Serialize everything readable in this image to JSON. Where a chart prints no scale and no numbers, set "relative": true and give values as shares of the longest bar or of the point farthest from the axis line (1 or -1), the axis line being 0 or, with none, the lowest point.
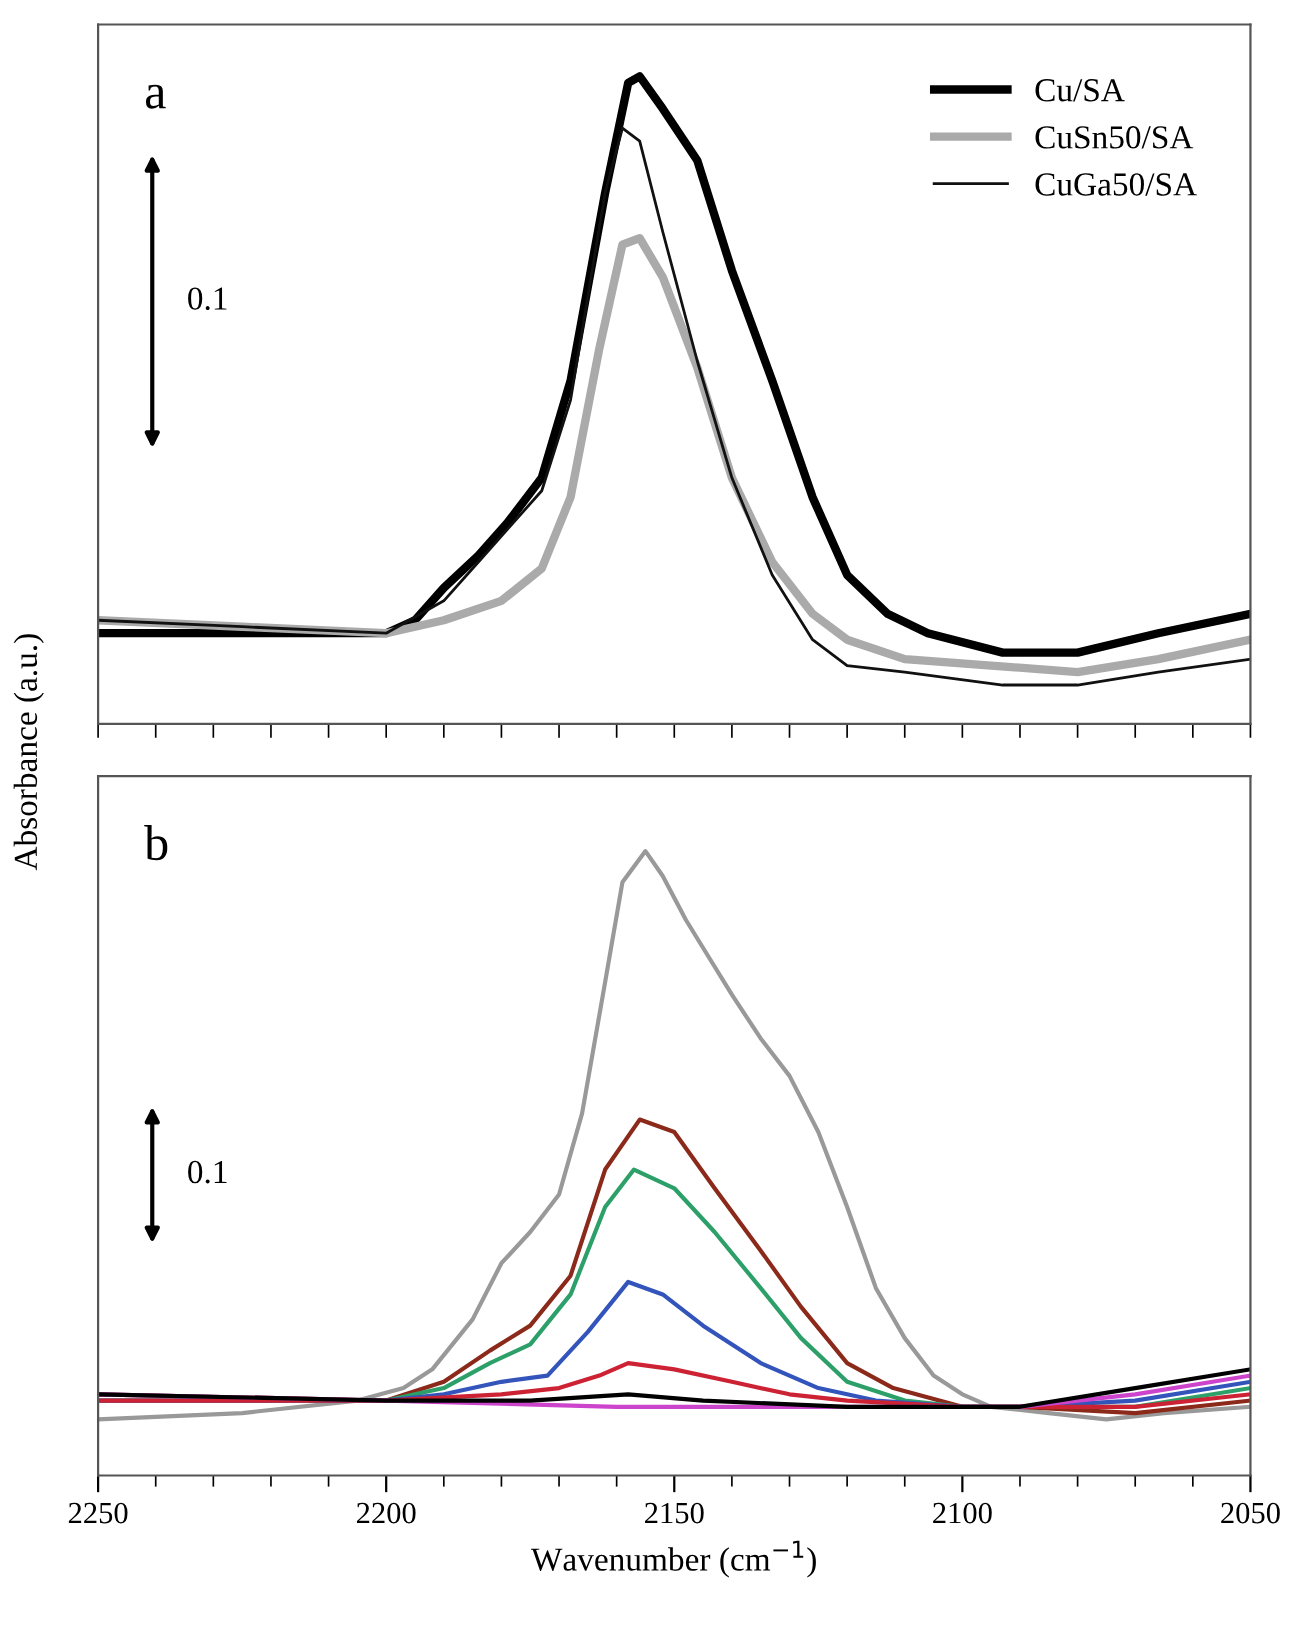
{
  "chart_data": [
    {
      "type": "line",
      "title": "a",
      "relative": true,
      "ylabel": "Absorbance (a.u.)",
      "xlim": [
        2250,
        2050
      ],
      "xticks": [
        {
          "value": 2250,
          "label": null
        },
        {
          "value": 2240,
          "label": null
        },
        {
          "value": 2230,
          "label": null
        },
        {
          "value": 2220,
          "label": null
        },
        {
          "value": 2210,
          "label": null
        },
        {
          "value": 2200,
          "label": null
        },
        {
          "value": 2190,
          "label": null
        },
        {
          "value": 2180,
          "label": null
        },
        {
          "value": 2170,
          "label": null
        },
        {
          "value": 2160,
          "label": null
        },
        {
          "value": 2150,
          "label": null
        },
        {
          "value": 2140,
          "label": null
        },
        {
          "value": 2130,
          "label": null
        },
        {
          "value": 2120,
          "label": null
        },
        {
          "value": 2110,
          "label": null
        },
        {
          "value": 2100,
          "label": null
        },
        {
          "value": 2090,
          "label": null
        },
        {
          "value": 2080,
          "label": null
        },
        {
          "value": 2070,
          "label": null
        },
        {
          "value": 2060,
          "label": null
        },
        {
          "value": 2050,
          "label": null
        }
      ],
      "tick_labels": false,
      "legend": "top right",
      "annotations": [
        "0.1"
      ],
      "series": [
        {
          "name": "Cu/SA",
          "color": "#000000",
          "x": [
            2250,
            2225,
            2200,
            2195,
            2190,
            2184,
            2179,
            2173,
            2168,
            2162,
            2158,
            2156,
            2152,
            2146,
            2140,
            2133,
            2126,
            2120,
            2113,
            2106,
            2093,
            2080,
            2066,
            2050
          ],
          "values": [
            0.14,
            0.14,
            0.14,
            0.16,
            0.21,
            0.26,
            0.31,
            0.38,
            0.53,
            0.82,
            0.99,
            1.0,
            0.95,
            0.87,
            0.7,
            0.53,
            0.35,
            0.23,
            0.17,
            0.14,
            0.11,
            0.11,
            0.14,
            0.17
          ]
        },
        {
          "name": "CuSn50/SA",
          "color": "#aaaaaa",
          "x": [
            2250,
            2225,
            2200,
            2190,
            2180,
            2173,
            2168,
            2163,
            2159,
            2156,
            2152,
            2146,
            2140,
            2133,
            2126,
            2120,
            2110,
            2095,
            2080,
            2066,
            2050
          ],
          "values": [
            0.16,
            0.15,
            0.14,
            0.16,
            0.19,
            0.24,
            0.35,
            0.58,
            0.74,
            0.75,
            0.69,
            0.55,
            0.38,
            0.25,
            0.17,
            0.13,
            0.1,
            0.09,
            0.08,
            0.1,
            0.13
          ]
        },
        {
          "name": "CuGa50/SA",
          "color": "#111111",
          "x": [
            2250,
            2225,
            2200,
            2190,
            2184,
            2179,
            2173,
            2168,
            2162,
            2159,
            2156,
            2152,
            2146,
            2140,
            2133,
            2126,
            2120,
            2110,
            2093,
            2080,
            2066,
            2050
          ],
          "values": [
            0.16,
            0.15,
            0.14,
            0.19,
            0.25,
            0.3,
            0.36,
            0.5,
            0.82,
            0.92,
            0.9,
            0.76,
            0.56,
            0.38,
            0.23,
            0.13,
            0.09,
            0.08,
            0.06,
            0.06,
            0.08,
            0.1
          ]
        }
      ]
    },
    {
      "type": "line",
      "title": "b",
      "relative": true,
      "xlabel": "Wavenumber (cm$^{−1}$)",
      "xlim": [
        2250,
        2050
      ],
      "xticks": [
        2250,
        {
          "value": 2240,
          "label": null
        },
        {
          "value": 2230,
          "label": null
        },
        {
          "value": 2220,
          "label": null
        },
        {
          "value": 2210,
          "label": null
        },
        2200,
        {
          "value": 2190,
          "label": null
        },
        {
          "value": 2180,
          "label": null
        },
        {
          "value": 2170,
          "label": null
        },
        {
          "value": 2160,
          "label": null
        },
        2150,
        {
          "value": 2140,
          "label": null
        },
        {
          "value": 2130,
          "label": null
        },
        {
          "value": 2120,
          "label": null
        },
        {
          "value": 2110,
          "label": null
        },
        2100,
        {
          "value": 2090,
          "label": null
        },
        {
          "value": 2080,
          "label": null
        },
        {
          "value": 2070,
          "label": null
        },
        {
          "value": 2060,
          "label": null
        },
        2050
      ],
      "tick_labels": "x",
      "annotations": [
        "0.1"
      ],
      "series": [
        {
          "color": "#999999",
          "x": [
            2250,
            2225,
            2205,
            2197,
            2192,
            2185,
            2180,
            2175,
            2170,
            2166,
            2162,
            2159,
            2155,
            2152,
            2148,
            2144,
            2140,
            2135,
            2130,
            2125,
            2120,
            2115,
            2110,
            2105,
            2100,
            2095,
            2085,
            2075,
            2065,
            2050
          ],
          "values": [
            0.09,
            0.1,
            0.12,
            0.14,
            0.17,
            0.25,
            0.34,
            0.39,
            0.45,
            0.58,
            0.79,
            0.95,
            1.0,
            0.96,
            0.89,
            0.83,
            0.77,
            0.7,
            0.64,
            0.55,
            0.43,
            0.3,
            0.22,
            0.16,
            0.13,
            0.11,
            0.1,
            0.09,
            0.1,
            0.11
          ]
        },
        {
          "color": "#8b2a1a",
          "x": [
            2250,
            2200,
            2190,
            2182,
            2175,
            2168,
            2162,
            2156,
            2150,
            2143,
            2135,
            2128,
            2120,
            2112,
            2100,
            2090,
            2070,
            2050
          ],
          "values": [
            0.13,
            0.12,
            0.15,
            0.2,
            0.24,
            0.32,
            0.49,
            0.57,
            0.55,
            0.46,
            0.36,
            0.27,
            0.18,
            0.14,
            0.11,
            0.11,
            0.1,
            0.12
          ]
        },
        {
          "color": "#2ca068",
          "x": [
            2250,
            2200,
            2190,
            2182,
            2175,
            2168,
            2162,
            2157,
            2150,
            2143,
            2135,
            2128,
            2120,
            2110,
            2100,
            2090,
            2070,
            2050
          ],
          "values": [
            0.12,
            0.12,
            0.14,
            0.18,
            0.21,
            0.29,
            0.43,
            0.49,
            0.46,
            0.39,
            0.3,
            0.22,
            0.15,
            0.12,
            0.11,
            0.11,
            0.11,
            0.14
          ]
        },
        {
          "color": "#3355bb",
          "x": [
            2250,
            2200,
            2190,
            2180,
            2172,
            2165,
            2158,
            2152,
            2145,
            2135,
            2125,
            2115,
            2100,
            2090,
            2070,
            2050
          ],
          "values": [
            0.12,
            0.12,
            0.13,
            0.15,
            0.16,
            0.23,
            0.31,
            0.29,
            0.24,
            0.18,
            0.14,
            0.12,
            0.11,
            0.11,
            0.12,
            0.15
          ]
        },
        {
          "color": "#cc2233",
          "x": [
            2250,
            2200,
            2180,
            2170,
            2163,
            2158,
            2150,
            2140,
            2130,
            2120,
            2100,
            2090,
            2070,
            2050
          ],
          "values": [
            0.12,
            0.12,
            0.13,
            0.14,
            0.16,
            0.18,
            0.17,
            0.15,
            0.13,
            0.12,
            0.11,
            0.11,
            0.11,
            0.13
          ]
        },
        {
          "color": "#cc44cc",
          "x": [
            2250,
            2200,
            2160,
            2120,
            2090,
            2070,
            2050
          ],
          "values": [
            0.13,
            0.12,
            0.11,
            0.11,
            0.11,
            0.13,
            0.16
          ]
        },
        {
          "color": "#000000",
          "x": [
            2250,
            2200,
            2175,
            2158,
            2145,
            2120,
            2100,
            2090,
            2070,
            2050
          ],
          "values": [
            0.13,
            0.12,
            0.12,
            0.13,
            0.12,
            0.11,
            0.11,
            0.11,
            0.14,
            0.17
          ]
        }
      ]
    }
  ]
}
